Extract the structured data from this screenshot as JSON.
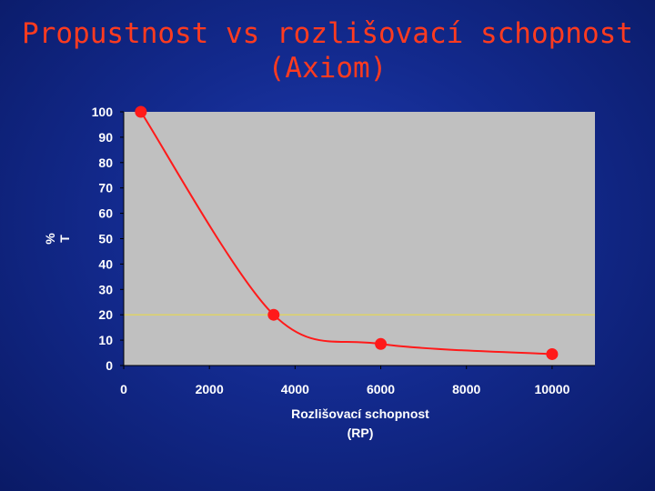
{
  "slide": {
    "title_line1": "Propustnost vs rozlišovací schopnost",
    "title_line2": "(Axiom)"
  },
  "chart_data": {
    "type": "line",
    "title": "",
    "xlabel": "Rozlišovací schopnost",
    "xlabel_line2": "(RP)",
    "ylabel": "% T",
    "xlim": [
      0,
      11000
    ],
    "ylim": [
      0,
      100
    ],
    "x_ticks": [
      0,
      2000,
      4000,
      6000,
      8000,
      10000
    ],
    "y_ticks": [
      0,
      10,
      20,
      30,
      40,
      50,
      60,
      70,
      80,
      90,
      100
    ],
    "grid": false,
    "reference_line_y": 20,
    "series": [
      {
        "points": [
          {
            "x": 400,
            "y": 100
          },
          {
            "x": 3500,
            "y": 20
          },
          {
            "x": 6000,
            "y": 8.5
          },
          {
            "x": 10000,
            "y": 4.5
          }
        ]
      }
    ],
    "colors": {
      "line": "#ff1a1a",
      "marker": "#ff1a1a",
      "plot_bg": "#c0c0c0",
      "reference_line": "#e8d84a",
      "text": "#ffffff",
      "title": "#ff3b1f"
    }
  }
}
